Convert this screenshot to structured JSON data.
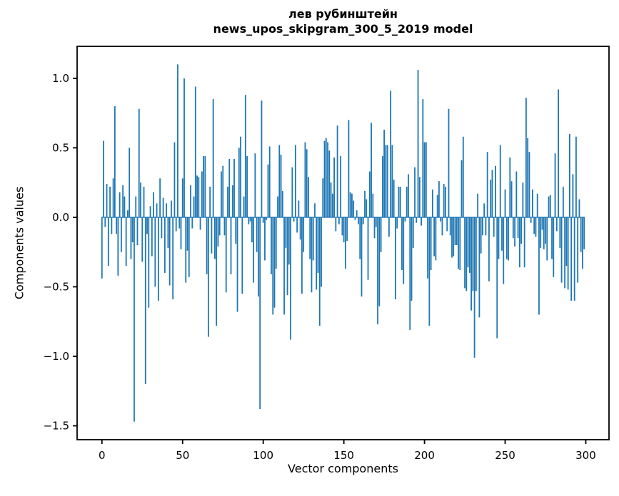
{
  "figure": {
    "title_line1": "лев рубинштейн",
    "title_line2": "news_upos_skipgram_300_5_2019 model",
    "xlabel": "Vector components",
    "ylabel": "Components values"
  },
  "chart_data": {
    "type": "bar",
    "title": "лев рубинштейн\nnews_upos_skipgram_300_5_2019 model",
    "xlabel": "Vector components",
    "ylabel": "Components values",
    "legend": null,
    "grid": false,
    "bar_color": "#1f77b4",
    "axis_color": "#000000",
    "background_color": "#ffffff",
    "bar_width_units": 0.8,
    "xlim": [
      -15.4,
      314.4
    ],
    "ylim": [
      -1.6,
      1.23
    ],
    "x_ticks": [
      0,
      50,
      100,
      150,
      200,
      250,
      300
    ],
    "y_ticks": [
      1.0,
      0.5,
      0.0,
      -0.5,
      -1.0,
      -1.5
    ],
    "y_tick_labels": [
      "1.0",
      "0.5",
      "0.0",
      "−0.5",
      "−1.0",
      "−1.5"
    ],
    "x": "indices 0..299",
    "values": [
      -0.44,
      0.55,
      -0.07,
      0.24,
      -0.35,
      0.22,
      -0.12,
      0.28,
      0.8,
      -0.12,
      -0.42,
      0.18,
      -0.25,
      0.23,
      0.15,
      -0.35,
      0.05,
      0.5,
      -0.3,
      -0.18,
      -1.47,
      0.15,
      -0.2,
      0.78,
      0.25,
      -0.32,
      0.22,
      -1.2,
      -0.12,
      -0.65,
      0.08,
      -0.28,
      0.18,
      -0.5,
      0.1,
      -0.6,
      0.28,
      -0.15,
      0.14,
      -0.4,
      0.1,
      -0.22,
      -0.49,
      0.12,
      -0.59,
      0.54,
      -0.1,
      1.1,
      -0.08,
      -0.23,
      0.28,
      1.0,
      -0.47,
      -0.24,
      -0.43,
      0.23,
      -0.08,
      0.15,
      0.94,
      0.3,
      0.29,
      -0.09,
      0.33,
      0.44,
      0.44,
      -0.41,
      -0.86,
      0.22,
      -0.26,
      0.85,
      -0.3,
      -0.78,
      -0.21,
      -0.13,
      0.33,
      0.37,
      -0.13,
      -0.54,
      0.22,
      0.42,
      -0.41,
      0.23,
      0.42,
      -0.19,
      -0.68,
      0.5,
      0.58,
      -0.55,
      0.15,
      0.88,
      0.44,
      -0.05,
      -0.03,
      -0.18,
      -0.47,
      0.46,
      -0.25,
      -0.57,
      -1.38,
      0.84,
      -0.04,
      -0.31,
      -0.02,
      0.38,
      0.51,
      -0.41,
      -0.7,
      -0.65,
      -0.37,
      0.15,
      0.52,
      0.45,
      0.19,
      -0.7,
      -0.22,
      -0.56,
      -0.34,
      -0.88,
      0.36,
      -0.03,
      0.52,
      -0.11,
      0.12,
      -0.16,
      -0.55,
      -0.25,
      0.54,
      0.49,
      0.29,
      -0.3,
      -0.54,
      -0.31,
      0.1,
      -0.52,
      -0.4,
      -0.78,
      -0.5,
      0.28,
      0.55,
      0.57,
      0.54,
      0.48,
      0.25,
      0.17,
      0.43,
      -0.1,
      0.66,
      -0.05,
      0.44,
      -0.13,
      -0.18,
      -0.37,
      -0.17,
      0.7,
      0.18,
      0.17,
      0.12,
      -0.02,
      0.05,
      -0.05,
      -0.3,
      -0.57,
      -0.05,
      0.19,
      0.13,
      -0.45,
      0.33,
      0.68,
      0.17,
      -0.15,
      -0.07,
      -0.77,
      -0.64,
      -0.25,
      0.44,
      0.63,
      0.52,
      0.52,
      -0.14,
      0.91,
      0.52,
      0.27,
      -0.59,
      -0.08,
      0.22,
      0.22,
      -0.38,
      -0.48,
      -0.03,
      0.22,
      0.31,
      -0.81,
      -0.6,
      -0.22,
      0.36,
      -0.04,
      1.06,
      0.29,
      -0.06,
      0.85,
      0.54,
      0.54,
      -0.44,
      -0.78,
      -0.38,
      0.2,
      -0.28,
      -0.31,
      0.16,
      0.26,
      -0.03,
      -0.13,
      0.24,
      0.22,
      -0.1,
      0.78,
      -0.13,
      -0.29,
      -0.28,
      -0.2,
      -0.2,
      -0.37,
      -0.38,
      0.41,
      0.58,
      -0.51,
      -0.53,
      -0.36,
      -0.4,
      -0.67,
      -0.53,
      -1.01,
      -0.53,
      0.17,
      -0.72,
      -0.26,
      -0.13,
      0.1,
      -0.13,
      0.47,
      -0.46,
      0.27,
      0.34,
      -0.14,
      0.37,
      -0.87,
      -0.3,
      0.52,
      -0.24,
      -0.48,
      0.2,
      -0.3,
      -0.31,
      0.43,
      0.26,
      -0.15,
      -0.21,
      0.33,
      -0.15,
      -0.36,
      -0.19,
      0.25,
      -0.36,
      0.86,
      0.57,
      0.47,
      -0.04,
      0.2,
      -0.12,
      -0.14,
      0.17,
      -0.7,
      -0.22,
      -0.09,
      -0.23,
      -0.19,
      -0.31,
      0.15,
      0.16,
      -0.3,
      -0.43,
      0.46,
      -0.1,
      0.92,
      -0.22,
      -0.47,
      0.22,
      -0.51,
      -0.35,
      -0.52,
      0.6,
      -0.6,
      0.31,
      -0.6,
      0.58,
      -0.47,
      0.13,
      -0.25,
      -0.37,
      -0.23
    ]
  }
}
